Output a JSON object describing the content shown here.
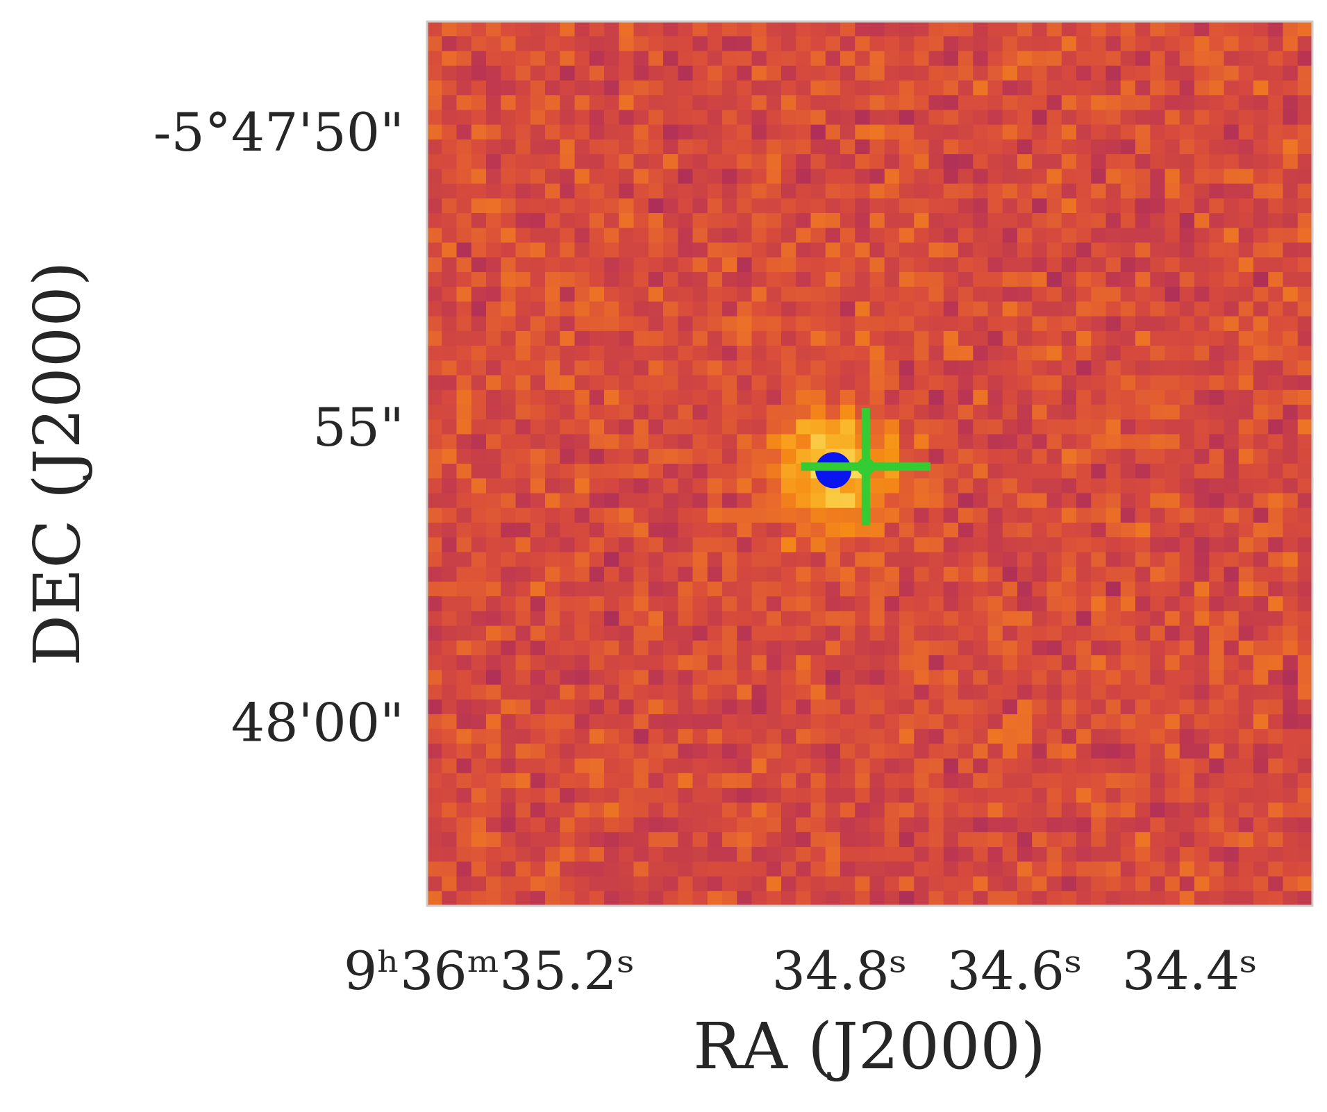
{
  "chart_data": {
    "type": "image",
    "xlabel": "RA (J2000)",
    "ylabel": "DEC (J2000)",
    "xlim": [
      35.271,
      34.26
    ],
    "ylim": [
      63.03,
      48.05
    ],
    "xticks": [
      {
        "value": 35.2,
        "label": "9ʰ36ᵐ35.2ˢ"
      },
      {
        "value": 34.8,
        "label": "34.8ˢ"
      },
      {
        "value": 34.6,
        "label": "34.6ˢ"
      },
      {
        "value": 34.4,
        "label": "34.4ˢ"
      }
    ],
    "yticks": [
      {
        "value": 50,
        "label": "-5°47'50\""
      },
      {
        "value": 55,
        "label": "55\""
      },
      {
        "value": 60,
        "label": "48'00\""
      }
    ],
    "series": [
      {
        "color": "#0a14f0",
        "marker": "circle",
        "x": [
          34.807
        ],
        "values": [
          55.65
        ]
      },
      {
        "color": "#33cc33",
        "marker": "cross",
        "x": [
          34.77
        ],
        "values": [
          55.59
        ],
        "xerr": [
          0.074
        ],
        "yerr": [
          0.99
        ]
      }
    ]
  }
}
